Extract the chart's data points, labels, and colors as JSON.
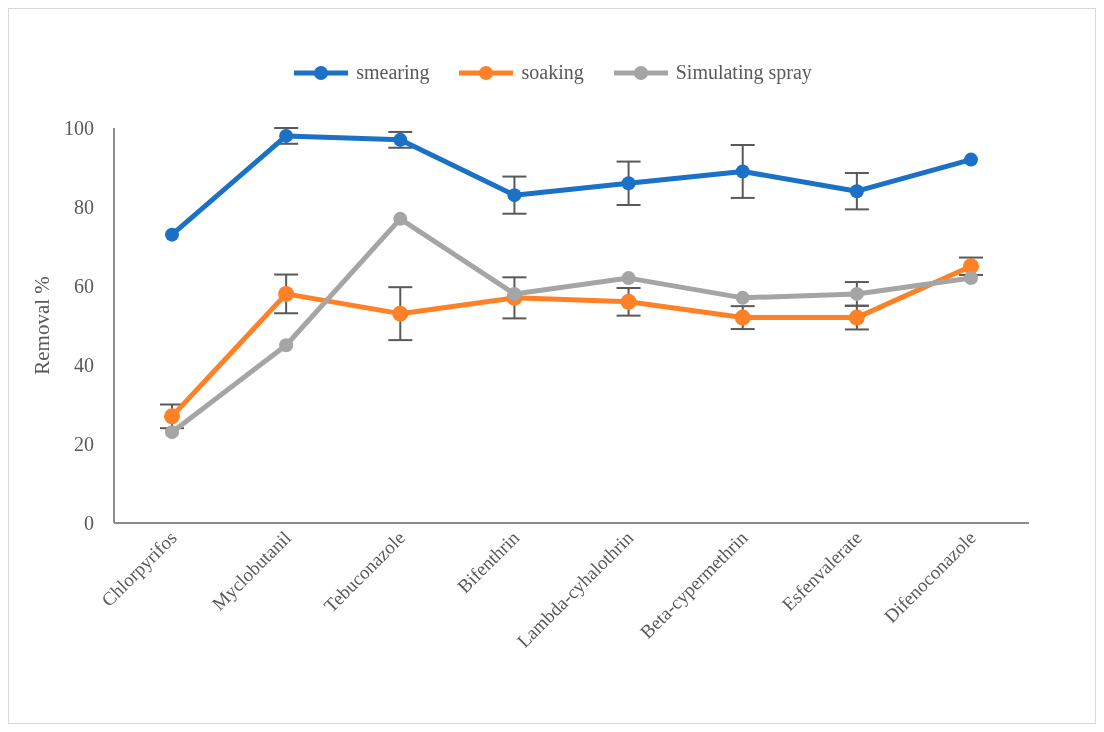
{
  "chart_data": {
    "type": "line",
    "ylabel": "Removal %",
    "categories": [
      "Chlorpyrifos",
      "Myclobutanil",
      "Tebuconazole",
      "Bifenthrin",
      "Lambda-cyhalothrin",
      "Beta-cypermethrin",
      "Esfenvalerate",
      "Difenoconazole"
    ],
    "series": [
      {
        "name": "smearing",
        "color": "#1a71c6",
        "values": [
          73,
          98,
          97,
          83,
          86,
          89,
          84,
          92
        ],
        "errors": [
          null,
          2,
          2,
          4.7,
          5.5,
          6.7,
          4.6,
          null
        ]
      },
      {
        "name": "soaking",
        "color": "#fe8127",
        "values": [
          27,
          58,
          53,
          57,
          56,
          52,
          52,
          65
        ],
        "errors": [
          3,
          4.9,
          6.7,
          5.2,
          3.5,
          2.9,
          3,
          2.2
        ]
      },
      {
        "name": "Simulating spray",
        "color": "#a5a5a5",
        "values": [
          23,
          45,
          77,
          58,
          62,
          57,
          58,
          62
        ],
        "errors": [
          null,
          null,
          null,
          null,
          null,
          null,
          3,
          null
        ]
      }
    ],
    "ylim": [
      0,
      100
    ],
    "yticks": [
      0,
      20,
      40,
      60,
      80,
      100
    ],
    "grid": false,
    "legend": "top",
    "marker": "circle",
    "line_style": "solid"
  }
}
